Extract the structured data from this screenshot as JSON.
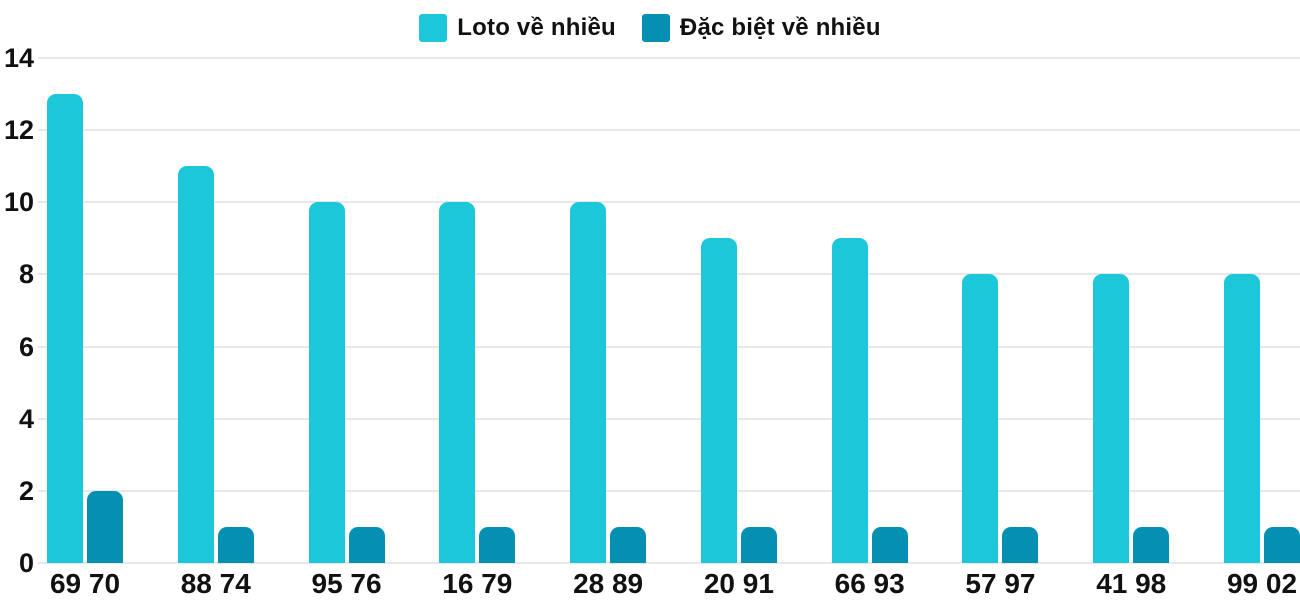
{
  "legend": {
    "items": [
      {
        "label": "Loto về nhiều",
        "color": "#1cc7da"
      },
      {
        "label": "Đặc biệt về nhiều",
        "color": "#0590b2"
      }
    ]
  },
  "chart_data": {
    "type": "bar",
    "title": "",
    "xlabel": "",
    "ylabel": "",
    "categories": [
      "69 70",
      "88 74",
      "95 76",
      "16 79",
      "28 89",
      "20 91",
      "66 93",
      "57 97",
      "41 98",
      "99 02"
    ],
    "series": [
      {
        "name": "Loto về nhiều",
        "color": "#1cc7da",
        "values": [
          13,
          11,
          10,
          10,
          10,
          9,
          9,
          8,
          8,
          8
        ]
      },
      {
        "name": "Đặc biệt về nhiều",
        "color": "#0590b2",
        "values": [
          2,
          1,
          1,
          1,
          1,
          1,
          1,
          1,
          1,
          1
        ]
      }
    ],
    "ylim": [
      0,
      14
    ],
    "yticks": [
      0,
      2,
      4,
      6,
      8,
      10,
      12,
      14
    ],
    "grid": true,
    "legend_position": "top-center"
  },
  "colors": {
    "grid": "#e8e8e8",
    "text": "#111111",
    "background": "#ffffff"
  }
}
